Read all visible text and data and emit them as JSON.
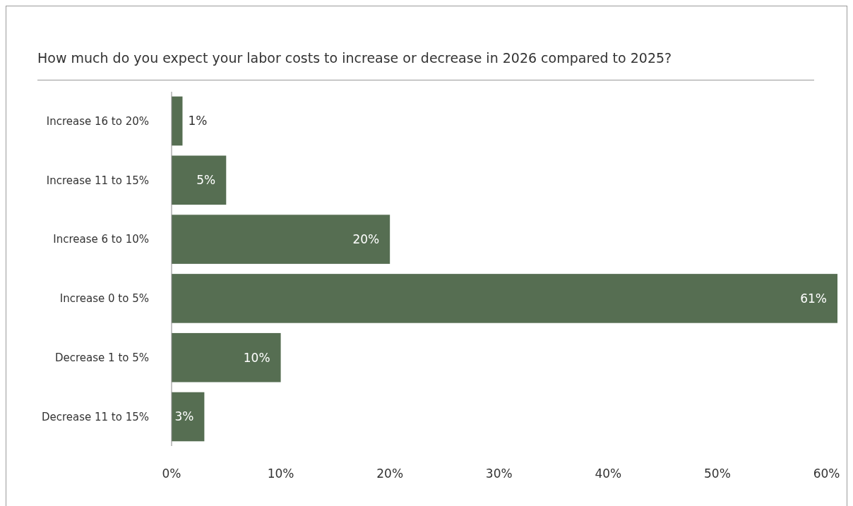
{
  "chart_data": {
    "type": "bar",
    "orientation": "horizontal",
    "title": "How much do you expect your labor costs to increase or decrease in 2026 compared to 2025?",
    "categories": [
      "Increase 16 to 20%",
      "Increase 11 to 15%",
      "Increase 6 to 10%",
      "Increase 0 to 5%",
      "Decrease 1 to 5%",
      "Decrease 11 to 15%"
    ],
    "values": [
      1,
      5,
      20,
      61,
      10,
      3
    ],
    "color": "#566e52",
    "value_labels": [
      "1%",
      "5%",
      "20%",
      "61%",
      "10%",
      "3%"
    ],
    "xlim": [
      0,
      61
    ],
    "xticks": [
      {
        "value": 0,
        "label": "0%"
      },
      {
        "value": 10,
        "label": "10%"
      },
      {
        "value": 20,
        "label": "20%"
      },
      {
        "value": 30,
        "label": "30%"
      },
      {
        "value": 40,
        "label": "40%"
      },
      {
        "value": 50,
        "label": "50%"
      },
      {
        "value": 60,
        "label": "60%"
      }
    ],
    "grid": false
  }
}
